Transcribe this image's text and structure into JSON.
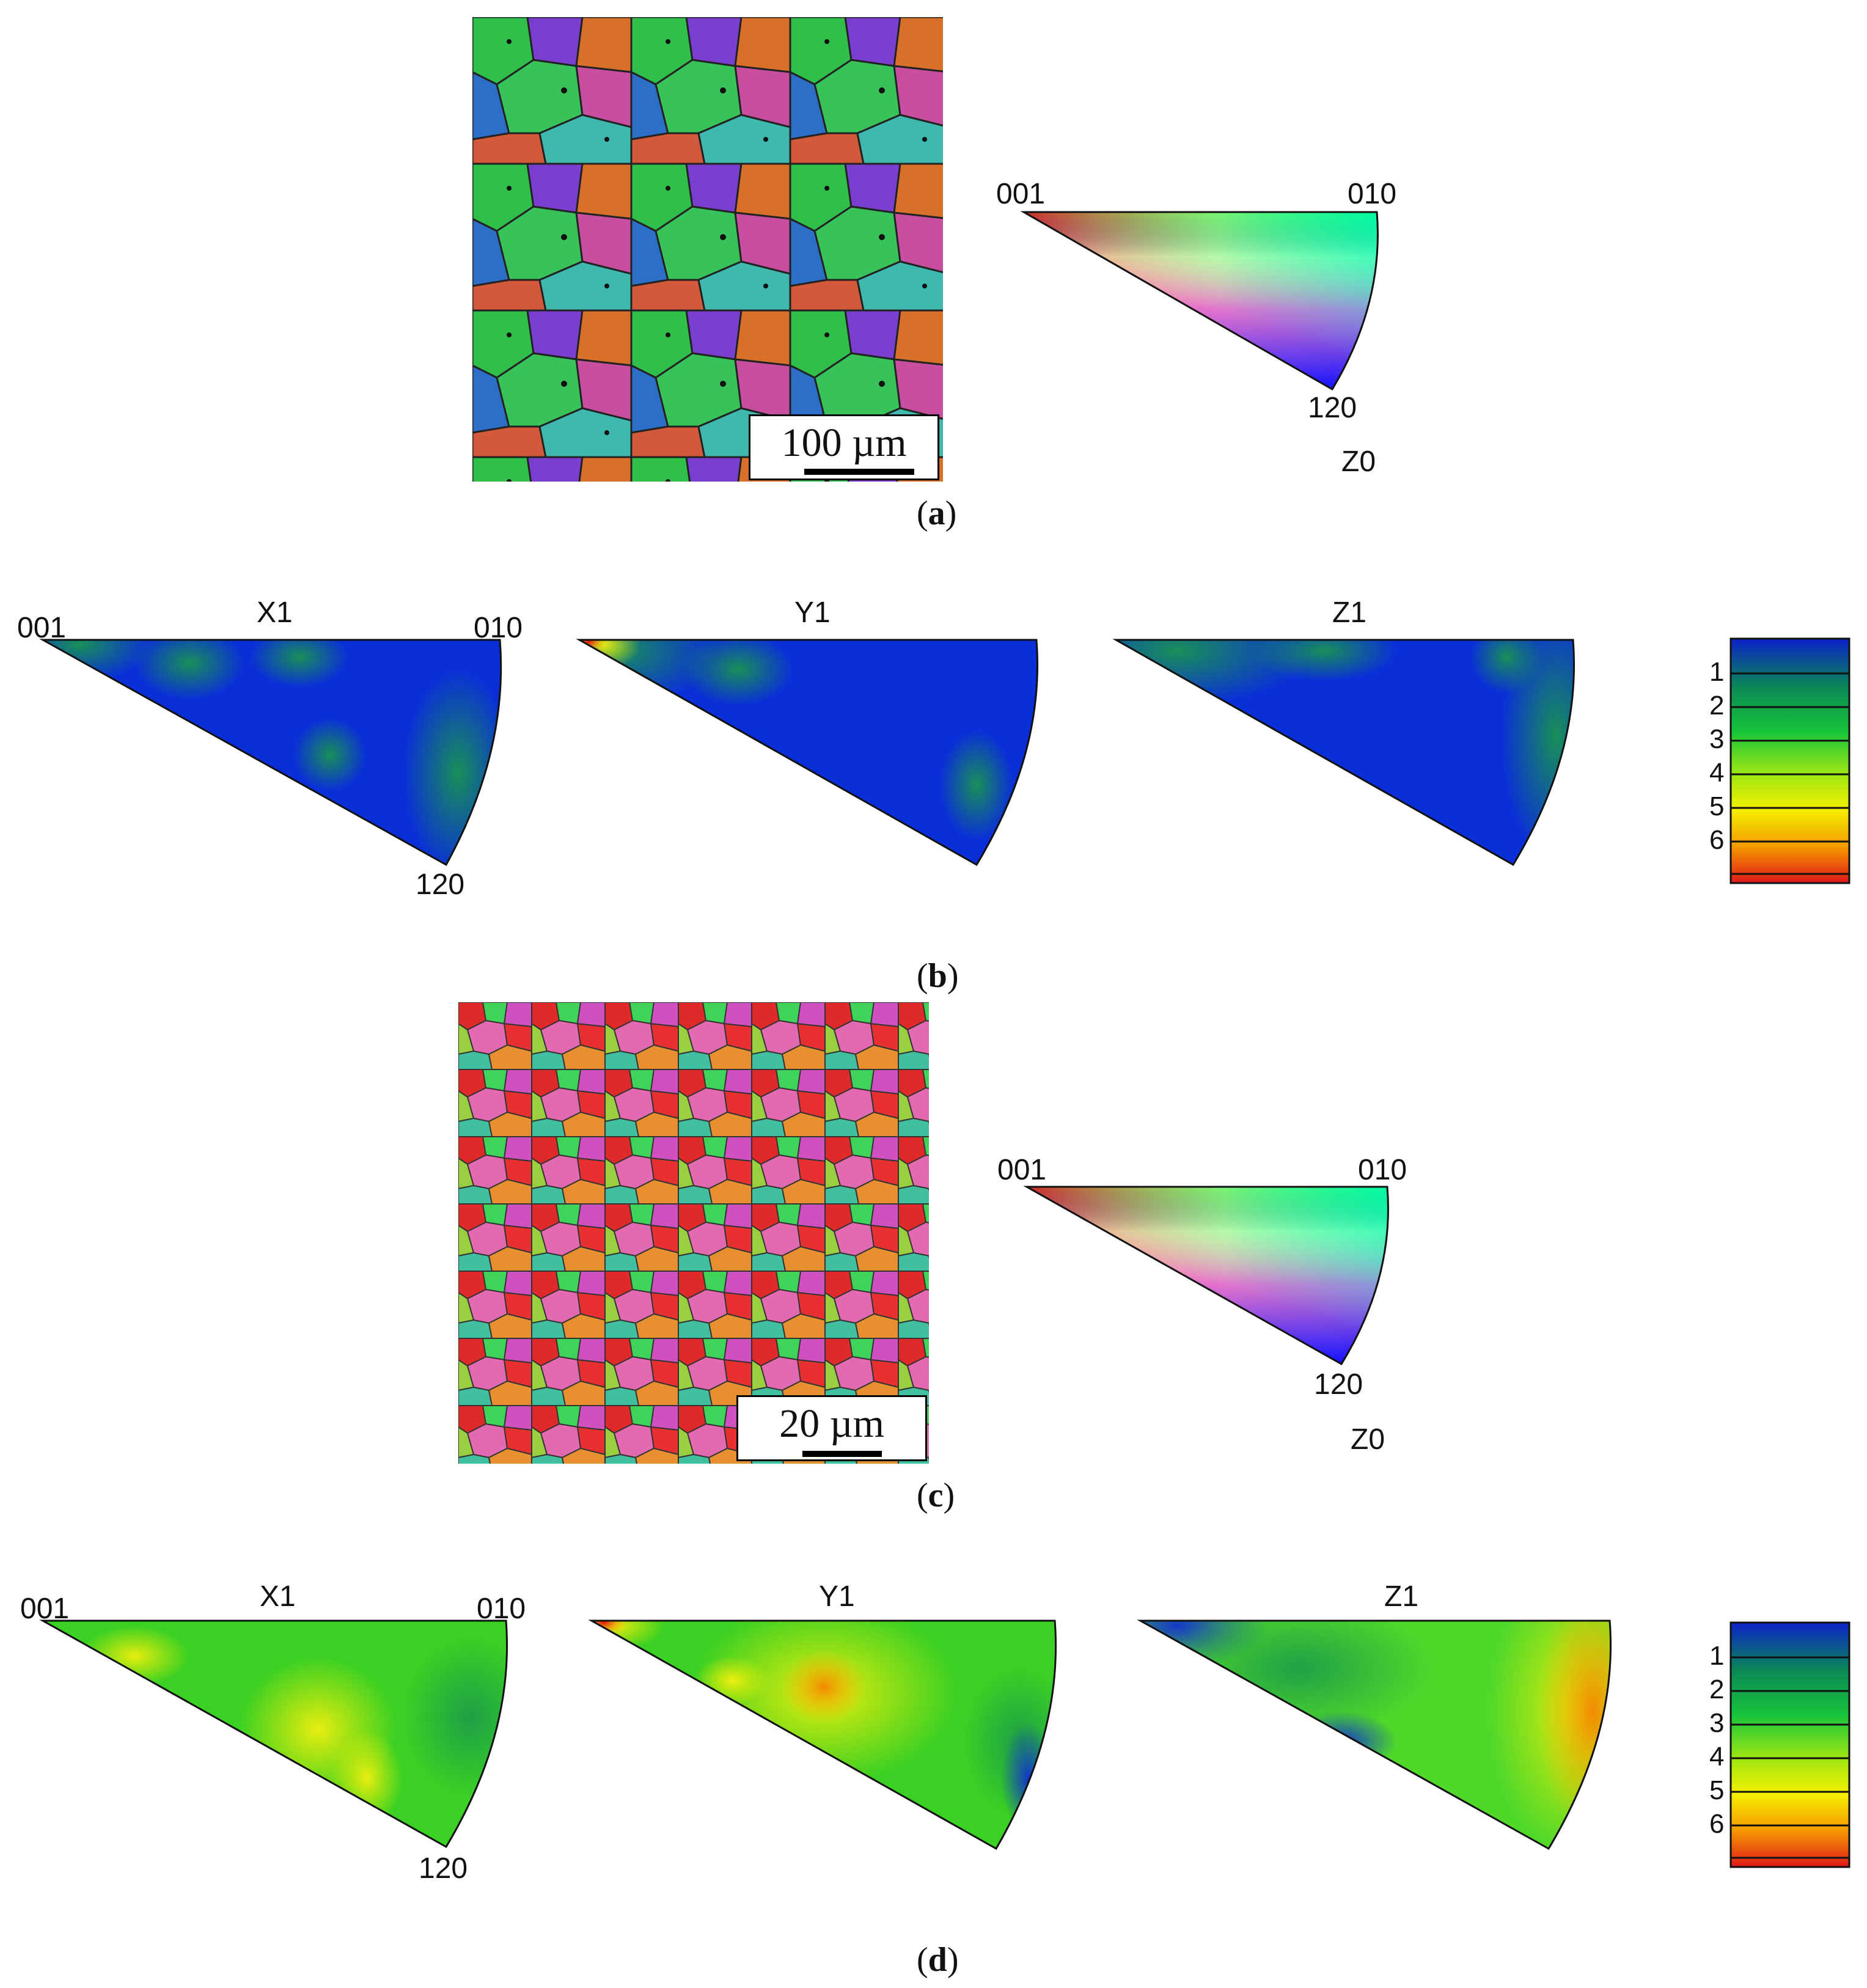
{
  "panels": {
    "a": {
      "label": "a",
      "scale_bar": "100 µm",
      "key": {
        "corner_left": "001",
        "corner_right": "010",
        "corner_bottom": "120",
        "name": "Z0"
      }
    },
    "b": {
      "label": "b",
      "plots": [
        {
          "title": "X1",
          "corner_left": "001",
          "corner_right": "010",
          "corner_bottom": "120"
        },
        {
          "title": "Y1"
        },
        {
          "title": "Z1"
        }
      ],
      "legend": [
        "1",
        "2",
        "3",
        "4",
        "5",
        "6"
      ]
    },
    "c": {
      "label": "c",
      "scale_bar": "20 µm",
      "key": {
        "corner_left": "001",
        "corner_right": "010",
        "corner_bottom": "120",
        "name": "Z0"
      }
    },
    "d": {
      "label": "d",
      "plots": [
        {
          "title": "X1",
          "corner_left": "001",
          "corner_right": "010",
          "corner_bottom": "120"
        },
        {
          "title": "Y1"
        },
        {
          "title": "Z1"
        }
      ],
      "legend": [
        "1",
        "2",
        "3",
        "4",
        "5",
        "6"
      ]
    }
  },
  "colors": {
    "ipf_red": "#ff0000",
    "ipf_green": "#00ff00",
    "ipf_blue": "#0000ff",
    "density_low": "#0022dd",
    "density_high": "#dd1100"
  }
}
